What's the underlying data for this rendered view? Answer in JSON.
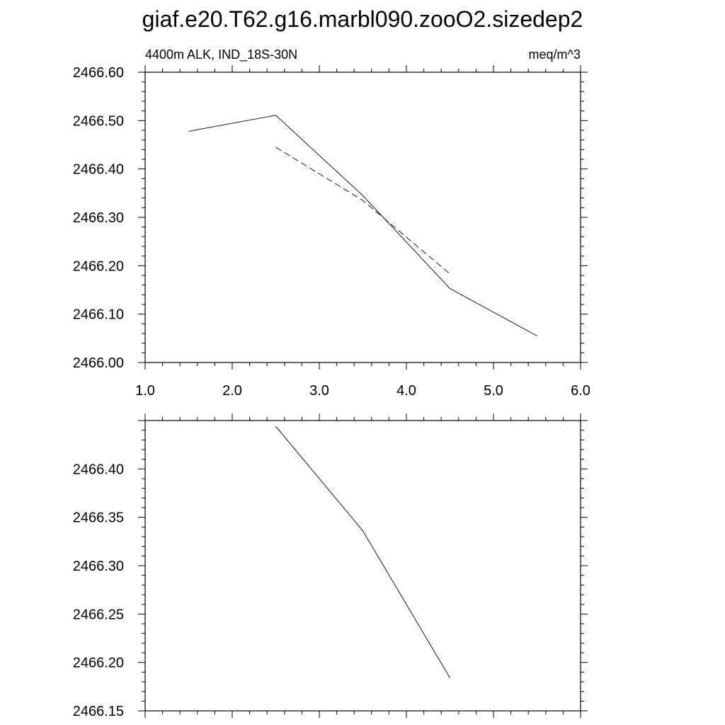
{
  "title": "giaf.e20.T62.g16.marbl090.zooO2.sizedep2",
  "chart_data": [
    {
      "type": "line",
      "left_label": "4400m ALK, IND_18S-30N",
      "right_label": "meq/m^3",
      "xlim": [
        1.0,
        6.0
      ],
      "ylim": [
        2466.0,
        2466.6
      ],
      "x_ticks": [
        1.0,
        2.0,
        3.0,
        4.0,
        5.0,
        6.0
      ],
      "x_tick_labels": [
        "1.0",
        "2.0",
        "3.0",
        "4.0",
        "5.0",
        "6.0"
      ],
      "y_ticks": [
        2466.0,
        2466.1,
        2466.2,
        2466.3,
        2466.4,
        2466.5,
        2466.6
      ],
      "y_tick_labels": [
        "2466.00",
        "2466.10",
        "2466.20",
        "2466.30",
        "2466.40",
        "2466.50",
        "2466.60"
      ],
      "grid": false,
      "series": [
        {
          "style": "solid",
          "x": [
            1.5,
            2.5,
            3.5,
            4.5,
            5.5
          ],
          "y": [
            2466.478,
            2466.511,
            2466.345,
            2466.153,
            2466.055
          ]
        },
        {
          "style": "dashed",
          "x": [
            2.5,
            3.5,
            4.5
          ],
          "y": [
            2466.445,
            2466.335,
            2466.183
          ]
        }
      ]
    },
    {
      "type": "line",
      "xlim": [
        1.0,
        6.0
      ],
      "ylim": [
        2466.15,
        2466.45
      ],
      "x_ticks": [
        1.0,
        2.0,
        3.0,
        4.0,
        5.0,
        6.0
      ],
      "y_ticks": [
        2466.15,
        2466.2,
        2466.25,
        2466.3,
        2466.35,
        2466.4
      ],
      "y_tick_labels": [
        "2466.15",
        "2466.20",
        "2466.25",
        "2466.30",
        "2466.35",
        "2466.40"
      ],
      "grid": false,
      "series": [
        {
          "style": "solid",
          "x": [
            2.5,
            3.5,
            4.5
          ],
          "y": [
            2466.444,
            2466.336,
            2466.184
          ]
        }
      ]
    }
  ]
}
